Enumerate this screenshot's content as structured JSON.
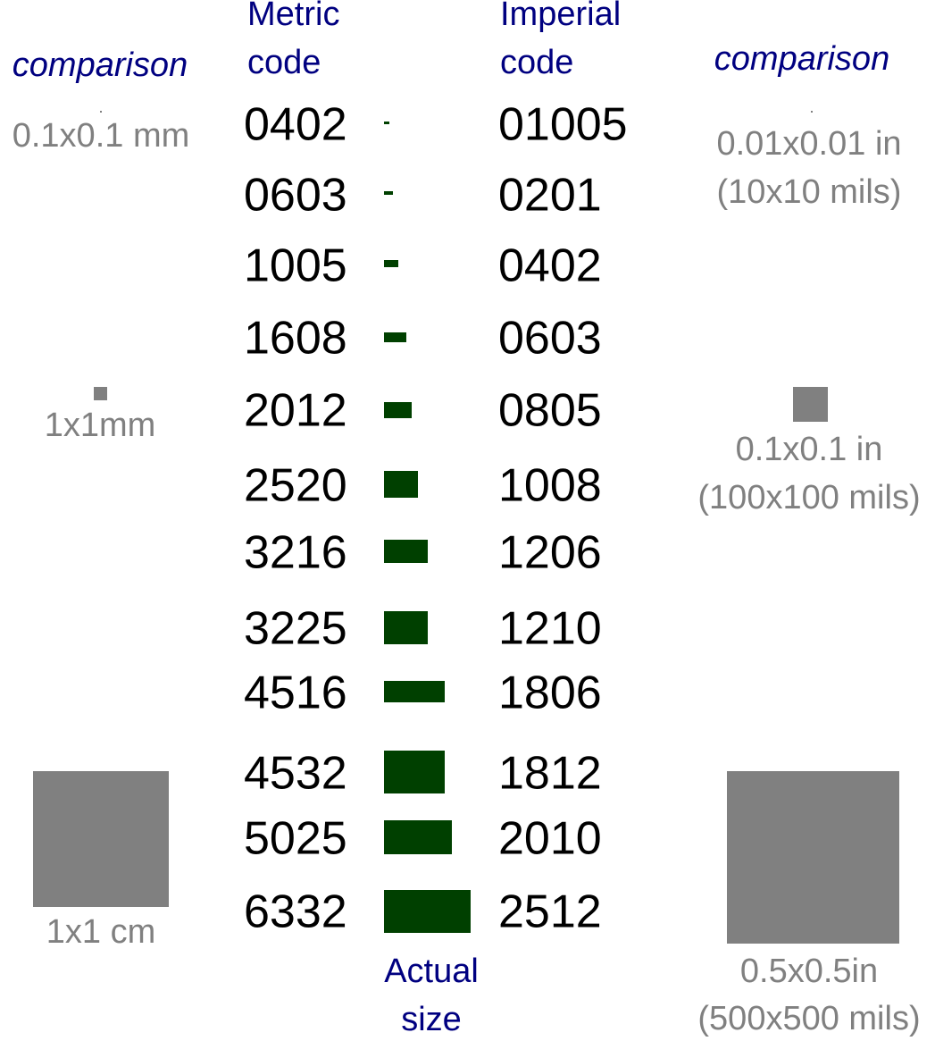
{
  "left": {
    "title": "comparison",
    "items": [
      "0.1x0.1 mm",
      "1x1mm",
      "1x1 cm"
    ]
  },
  "metric_header": [
    "Metric",
    "code"
  ],
  "imperial_header": [
    "Imperial",
    "code"
  ],
  "rows": [
    [
      "0402",
      "01005"
    ],
    [
      "0603",
      "0201"
    ],
    [
      "1005",
      "0402"
    ],
    [
      "1608",
      "0603"
    ],
    [
      "2012",
      "0805"
    ],
    [
      "2520",
      "1008"
    ],
    [
      "3216",
      "1206"
    ],
    [
      "3225",
      "1210"
    ],
    [
      "4516",
      "1806"
    ],
    [
      "4532",
      "1812"
    ],
    [
      "5025",
      "2010"
    ],
    [
      "6332",
      "2512"
    ]
  ],
  "actual_size": [
    "Actual",
    "size"
  ],
  "right": {
    "title": "comparison",
    "items": [
      [
        "0.01x0.01 in",
        "(10x10 mils)"
      ],
      [
        "0.1x0.1 in",
        "(100x100 mils)"
      ],
      [
        "0.5x0.5in",
        "(500x500 mils)"
      ]
    ]
  }
}
